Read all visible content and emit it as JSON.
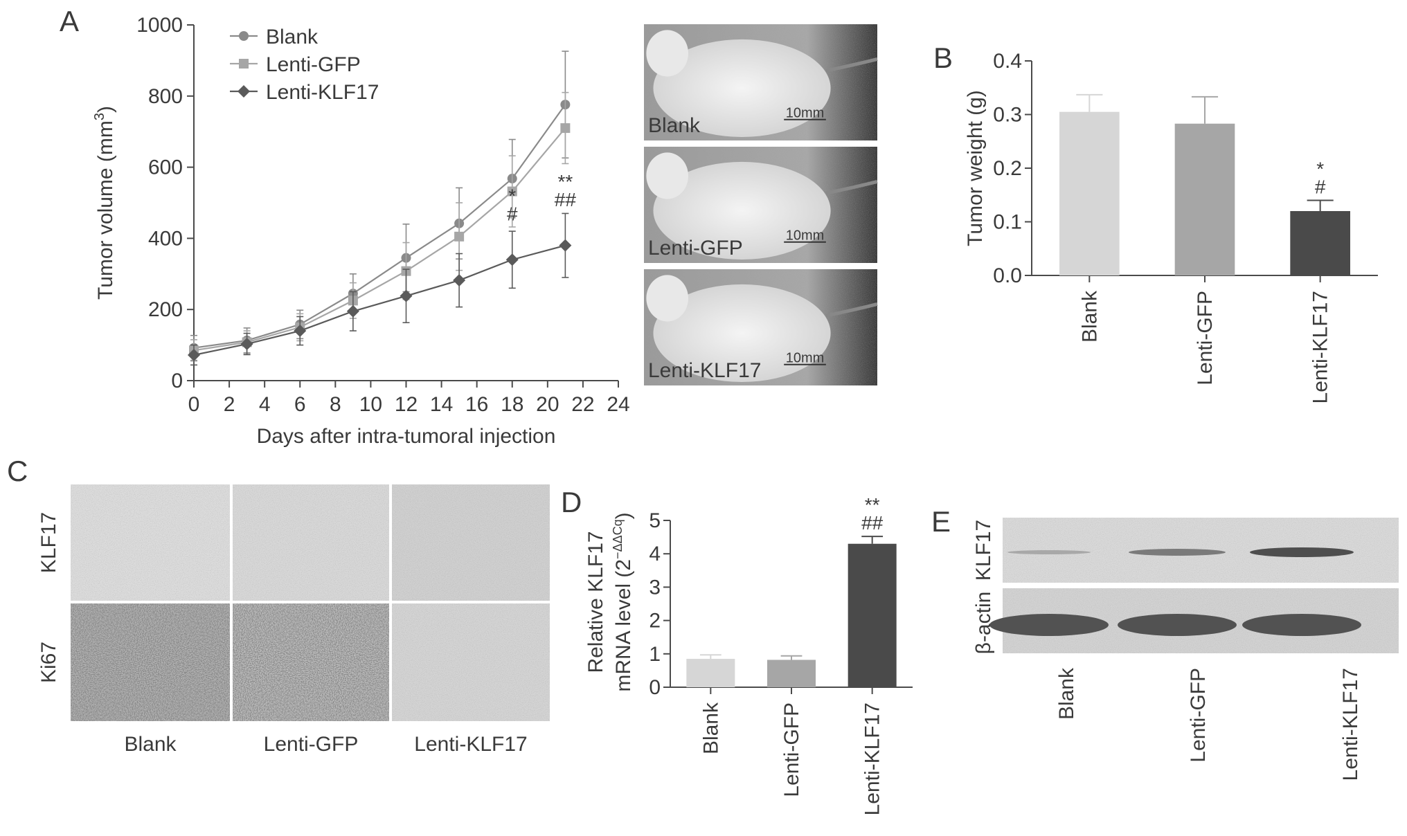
{
  "panel_letters": {
    "a": "A",
    "b": "B",
    "c": "C",
    "d": "D",
    "e": "E"
  },
  "colors": {
    "axis": "#4a4a4a",
    "blank": "#8a8a8a",
    "gfp": "#a6a6a6",
    "klf17": "#5a5a5a",
    "bar_blank": "#d6d6d6",
    "bar_gfp": "#a6a6a6",
    "bar_klf17": "#4a4a4a"
  },
  "chart_data": [
    {
      "id": "A",
      "type": "line",
      "xlabel": "Days after intra-tumoral injection",
      "ylabel_main": "Tumor volume (mm",
      "ylabel_sup": "3",
      "ylabel_end": ")",
      "xlim": [
        0,
        24
      ],
      "ylim": [
        0,
        1000
      ],
      "xticks": [
        0,
        2,
        4,
        6,
        8,
        10,
        12,
        14,
        16,
        18,
        20,
        22,
        24
      ],
      "yticks": [
        0,
        200,
        400,
        600,
        800,
        1000
      ],
      "legend_position": "top-left",
      "x": [
        0,
        3,
        6,
        9,
        12,
        15,
        18,
        21
      ],
      "series": [
        {
          "name": "Blank",
          "marker": "circle",
          "values": [
            92,
            113,
            158,
            245,
            345,
            442,
            568,
            776
          ],
          "errors": [
            35,
            35,
            40,
            55,
            95,
            100,
            110,
            150
          ]
        },
        {
          "name": "Lenti-GFP",
          "marker": "square",
          "values": [
            85,
            108,
            150,
            225,
            308,
            405,
            532,
            710
          ],
          "errors": [
            30,
            32,
            38,
            50,
            80,
            95,
            100,
            100
          ]
        },
        {
          "name": "Lenti-KLF17",
          "marker": "diamond",
          "values": [
            72,
            103,
            140,
            195,
            238,
            282,
            340,
            380
          ],
          "errors": [
            28,
            30,
            40,
            55,
            75,
            75,
            80,
            90
          ]
        }
      ],
      "annotations": [
        {
          "x": 18,
          "lines": [
            "*",
            "#"
          ],
          "y": 450
        },
        {
          "x": 21,
          "lines": [
            "**",
            "##"
          ],
          "y": 490
        }
      ]
    },
    {
      "id": "B",
      "type": "bar",
      "ylabel": "Tumor weight (g)",
      "ylim": [
        0,
        0.4
      ],
      "yticks": [
        "0.0",
        "0.1",
        "0.2",
        "0.3",
        "0.4"
      ],
      "categories": [
        "Blank",
        "Lenti-GFP",
        "Lenti-KLF17"
      ],
      "values": [
        0.305,
        0.283,
        0.12
      ],
      "errors": [
        0.032,
        0.05,
        0.02
      ],
      "annotations": [
        null,
        null,
        [
          "*",
          "#"
        ]
      ]
    },
    {
      "id": "D",
      "type": "bar",
      "ylabel_line1": "Relative KLF17",
      "ylabel_line2": "mRNA level (2",
      "ylabel_sup": "−ΔΔCq",
      "ylabel_end": ")",
      "ylim": [
        0,
        5
      ],
      "yticks": [
        "0",
        "1",
        "2",
        "3",
        "4",
        "5"
      ],
      "categories": [
        "Blank",
        "Lenti-GFP",
        "Lenti-KLF17"
      ],
      "values": [
        0.85,
        0.82,
        4.3
      ],
      "errors": [
        0.12,
        0.12,
        0.22
      ],
      "annotations": [
        null,
        null,
        [
          "**",
          "##"
        ]
      ]
    }
  ],
  "photos": {
    "labels": [
      "Blank",
      "Lenti-GFP",
      "Lenti-KLF17"
    ],
    "scale": "10mm"
  },
  "histology": {
    "rows": [
      "KLF17",
      "Ki67"
    ],
    "cols": [
      "Blank",
      "Lenti-GFP",
      "Lenti-KLF17"
    ]
  },
  "western": {
    "rows": [
      "KLF17",
      "β-actin"
    ],
    "cols": [
      "Blank",
      "Lenti-GFP",
      "Lenti-KLF17"
    ]
  }
}
